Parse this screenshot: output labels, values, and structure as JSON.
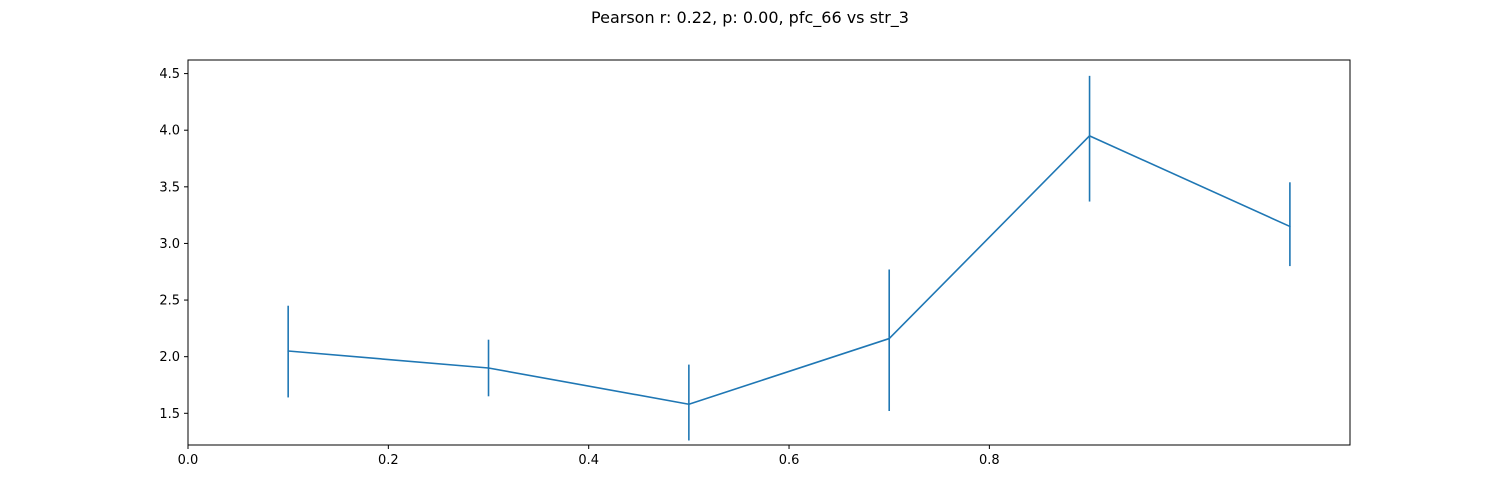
{
  "chart_data": {
    "type": "line",
    "title": "Pearson r: 0.22, p: 0.00, pfc_66 vs str_3",
    "xlabel": "",
    "ylabel": "",
    "xlim": [
      0.0,
      1.16
    ],
    "ylim": [
      1.22,
      4.62
    ],
    "grid": false,
    "x_ticks": [
      0.0,
      0.2,
      0.4,
      0.6,
      0.8
    ],
    "x_tick_labels": [
      "0.0",
      "0.2",
      "0.4",
      "0.6",
      "0.8"
    ],
    "y_ticks": [
      1.5,
      2.0,
      2.5,
      3.0,
      3.5,
      4.0,
      4.5
    ],
    "y_tick_labels": [
      "1.5",
      "2.0",
      "2.5",
      "3.0",
      "3.5",
      "4.0",
      "4.5"
    ],
    "color": "#1f77b4",
    "series": [
      {
        "x": [
          0.1,
          0.3,
          0.5,
          0.7,
          0.9,
          1.1
        ],
        "y": [
          2.05,
          1.9,
          1.58,
          2.16,
          3.95,
          3.15
        ],
        "err_low": [
          1.64,
          1.65,
          1.26,
          1.52,
          3.37,
          2.8
        ],
        "err_high": [
          2.45,
          2.15,
          1.93,
          2.77,
          4.48,
          3.54
        ]
      }
    ]
  }
}
